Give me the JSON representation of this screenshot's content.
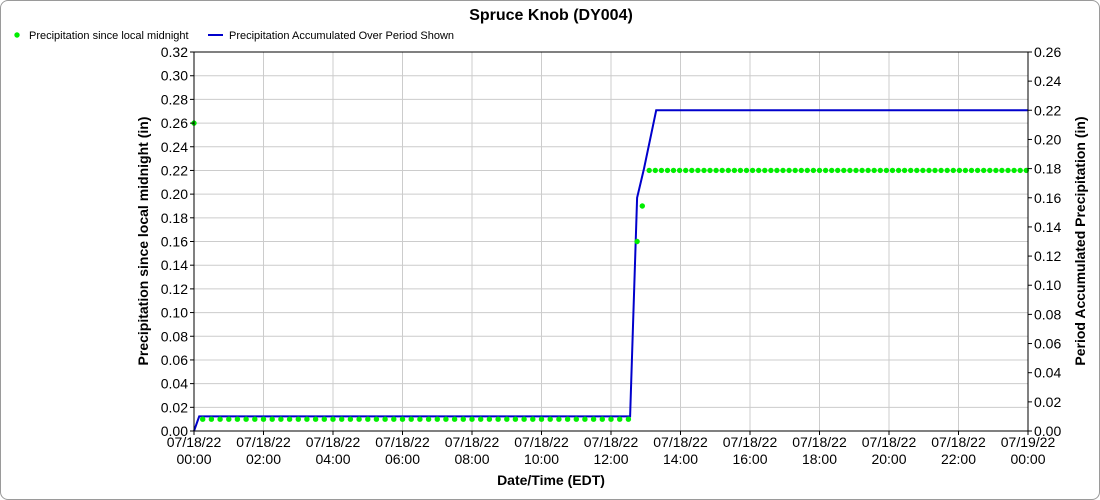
{
  "chart_data": {
    "type": "line",
    "title": "Spruce Knob (DY004)",
    "xlabel": "Date/Time (EDT)",
    "ylabel_left": "Precipitation since local midnight (in)",
    "ylabel_right": "Period Accumulated Precipitation (in)",
    "x_ticks": [
      {
        "hour": 0,
        "date": "07/18/22",
        "time": "00:00"
      },
      {
        "hour": 2,
        "date": "07/18/22",
        "time": "02:00"
      },
      {
        "hour": 4,
        "date": "07/18/22",
        "time": "04:00"
      },
      {
        "hour": 6,
        "date": "07/18/22",
        "time": "06:00"
      },
      {
        "hour": 8,
        "date": "07/18/22",
        "time": "08:00"
      },
      {
        "hour": 10,
        "date": "07/18/22",
        "time": "10:00"
      },
      {
        "hour": 12,
        "date": "07/18/22",
        "time": "12:00"
      },
      {
        "hour": 14,
        "date": "07/18/22",
        "time": "14:00"
      },
      {
        "hour": 16,
        "date": "07/18/22",
        "time": "16:00"
      },
      {
        "hour": 18,
        "date": "07/18/22",
        "time": "18:00"
      },
      {
        "hour": 20,
        "date": "07/18/22",
        "time": "20:00"
      },
      {
        "hour": 22,
        "date": "07/18/22",
        "time": "22:00"
      },
      {
        "hour": 24,
        "date": "07/19/22",
        "time": "00:00"
      }
    ],
    "xlim_hours": [
      0,
      24
    ],
    "y_left": {
      "lim": [
        0,
        0.32
      ],
      "ticks": [
        "0.00",
        "0.02",
        "0.04",
        "0.06",
        "0.08",
        "0.10",
        "0.12",
        "0.14",
        "0.16",
        "0.18",
        "0.20",
        "0.22",
        "0.24",
        "0.26",
        "0.28",
        "0.30",
        "0.32"
      ]
    },
    "y_right": {
      "lim": [
        0,
        0.26
      ],
      "ticks": [
        "0.00",
        "0.02",
        "0.04",
        "0.06",
        "0.08",
        "0.10",
        "0.12",
        "0.14",
        "0.16",
        "0.18",
        "0.20",
        "0.22",
        "0.24",
        "0.26"
      ]
    },
    "grid": true,
    "legend_position": "top-left",
    "series": [
      {
        "name": "Precipitation since local midnight",
        "type": "scatter",
        "axis": "left",
        "color": "#00ee00",
        "points": [
          {
            "start_hour": 0.0,
            "end_hour": 0.0,
            "step_hour": 0.25,
            "value": 0.26
          },
          {
            "start_hour": 0.25,
            "end_hour": 12.5,
            "step_hour": 0.25,
            "value": 0.01
          },
          {
            "start_hour": 12.75,
            "end_hour": 12.75,
            "step_hour": 0.25,
            "value": 0.16
          },
          {
            "start_hour": 12.9,
            "end_hour": 12.9,
            "step_hour": 0.25,
            "value": 0.19
          },
          {
            "start_hour": 13.1,
            "end_hour": 24.0,
            "step_hour": 0.175,
            "value": 0.22
          }
        ]
      },
      {
        "name": "Precipitation Accumulated Over Period Shown",
        "type": "line",
        "axis": "right",
        "color": "#0000cc",
        "x": [
          0,
          0.15,
          12.55,
          12.75,
          12.95,
          13.3,
          24
        ],
        "values": [
          0,
          0.01,
          0.01,
          0.16,
          0.18,
          0.22,
          0.22
        ]
      }
    ]
  }
}
